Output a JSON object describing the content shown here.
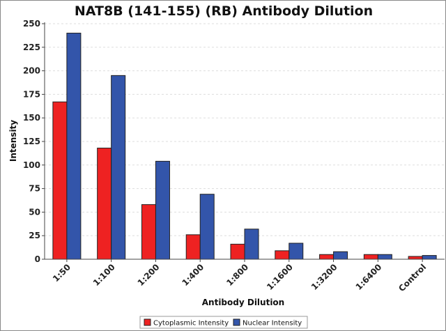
{
  "chart_data": {
    "type": "bar",
    "title": "NAT8B (141-155) (RB) Antibody Dilution",
    "xlabel": "Antibody Dilution",
    "ylabel": "Intensity",
    "ylim": [
      0,
      250
    ],
    "yticks": [
      0,
      25,
      50,
      75,
      100,
      125,
      150,
      175,
      200,
      225,
      250
    ],
    "grid": true,
    "legend_position": "bottom-center",
    "categories": [
      "1:50",
      "1:100",
      "1:200",
      "1:400",
      "1:800",
      "1:1600",
      "1:3200",
      "1:6400",
      "Control"
    ],
    "series": [
      {
        "name": "Cytoplasmic Intensity",
        "color": "#ee2222",
        "values": [
          167,
          118,
          58,
          26,
          16,
          9,
          5,
          5,
          3
        ]
      },
      {
        "name": "Nuclear Intensity",
        "color": "#3355aa",
        "values": [
          240,
          195,
          104,
          69,
          32,
          17,
          8,
          5,
          4
        ]
      }
    ]
  }
}
